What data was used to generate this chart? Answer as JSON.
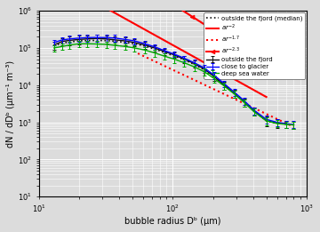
{
  "xlabel": "bubble radius Dᵇ (μm)",
  "ylabel": "dN / dDᵇ (μm⁻¹ m⁻³)",
  "xlim": [
    10,
    1000
  ],
  "ylim": [
    10,
    1000000
  ],
  "bg_color": "#dcdcdc",
  "grid_color": "#ffffff",
  "outside_fjord_x": [
    13,
    15,
    17,
    20,
    23,
    27,
    32,
    37,
    44,
    52,
    62,
    73,
    87,
    103,
    122,
    145,
    172,
    204,
    242,
    288,
    342,
    406,
    500,
    600,
    700,
    800
  ],
  "outside_fjord_y": [
    120000,
    150000,
    160000,
    170000,
    175000,
    180000,
    175000,
    165000,
    155000,
    140000,
    120000,
    100000,
    80000,
    65000,
    50000,
    38000,
    27000,
    17000,
    10000,
    6000,
    3500,
    2000,
    1100,
    950,
    900,
    850
  ],
  "outside_fjord_err_low": [
    30000,
    35000,
    40000,
    45000,
    45000,
    50000,
    45000,
    40000,
    35000,
    30000,
    25000,
    20000,
    15000,
    12000,
    10000,
    8000,
    6000,
    4000,
    2500,
    1500,
    900,
    500,
    300,
    250,
    200,
    200
  ],
  "outside_fjord_err_high": [
    30000,
    35000,
    40000,
    45000,
    45000,
    50000,
    45000,
    40000,
    35000,
    30000,
    25000,
    20000,
    15000,
    12000,
    10000,
    8000,
    6000,
    4000,
    2500,
    1500,
    900,
    500,
    300,
    250,
    200,
    200
  ],
  "outside_fjord_color": "#111111",
  "glacier_x": [
    13,
    15,
    17,
    20,
    23,
    27,
    32,
    37,
    44,
    52,
    62,
    73,
    87,
    103,
    122,
    145,
    172,
    204,
    242,
    288,
    342,
    406,
    500,
    600,
    700,
    800
  ],
  "glacier_y": [
    140000,
    165000,
    175000,
    185000,
    190000,
    192000,
    190000,
    185000,
    170000,
    155000,
    130000,
    108000,
    85000,
    68000,
    53000,
    40000,
    29000,
    18500,
    11000,
    6500,
    3800,
    2100,
    1200,
    1000,
    920,
    880
  ],
  "glacier_err_low": [
    25000,
    30000,
    35000,
    40000,
    40000,
    42000,
    40000,
    38000,
    32000,
    28000,
    22000,
    18000,
    14000,
    11000,
    9000,
    7500,
    5500,
    3800,
    2200,
    1300,
    800,
    450,
    280,
    230,
    200,
    190
  ],
  "glacier_err_high": [
    25000,
    30000,
    35000,
    40000,
    40000,
    42000,
    40000,
    38000,
    32000,
    28000,
    22000,
    18000,
    14000,
    11000,
    9000,
    7500,
    5500,
    3800,
    2200,
    1300,
    800,
    450,
    280,
    230,
    200,
    190
  ],
  "glacier_color": "#0000ff",
  "deep_sea_x": [
    13,
    15,
    17,
    20,
    23,
    27,
    32,
    37,
    44,
    52,
    62,
    73,
    87,
    103,
    122,
    145,
    172,
    204,
    242,
    288,
    342,
    406,
    500,
    600,
    700,
    800
  ],
  "deep_sea_y": [
    100000,
    110000,
    120000,
    130000,
    130000,
    128000,
    125000,
    118000,
    110000,
    100000,
    88000,
    74000,
    60000,
    50000,
    40000,
    31000,
    23000,
    15000,
    9500,
    5800,
    3400,
    1900,
    1100,
    930,
    880,
    850
  ],
  "deep_sea_err_low": [
    20000,
    22000,
    24000,
    26000,
    26000,
    25000,
    25000,
    23000,
    22000,
    20000,
    18000,
    15000,
    12000,
    10000,
    8000,
    6500,
    5000,
    3200,
    2000,
    1200,
    700,
    400,
    250,
    200,
    180,
    180
  ],
  "deep_sea_err_high": [
    20000,
    22000,
    24000,
    26000,
    26000,
    25000,
    25000,
    23000,
    22000,
    20000,
    18000,
    15000,
    12000,
    10000,
    8000,
    6500,
    5000,
    3200,
    2000,
    1200,
    700,
    400,
    250,
    200,
    180,
    180
  ],
  "deep_sea_color": "#00aa00",
  "median_x": [
    13,
    15,
    17,
    20,
    23,
    27,
    32,
    37,
    44,
    52,
    62,
    73,
    87,
    103,
    122,
    145,
    172,
    204,
    242,
    288,
    342,
    406,
    500,
    600,
    700,
    800
  ],
  "median_y": [
    115000,
    135000,
    145000,
    155000,
    158000,
    160000,
    158000,
    152000,
    142000,
    130000,
    112000,
    94000,
    75000,
    61000,
    48000,
    36000,
    26000,
    16500,
    10200,
    6100,
    3600,
    2000,
    1100,
    950,
    900,
    860
  ],
  "median_color": "#111111",
  "power2_x1": 30,
  "power2_x2": 500,
  "power2_a": 1200000000.0,
  "power2_exp": -2.0,
  "power17_x1": 55,
  "power17_x2": 800,
  "power17_a": 65000000.0,
  "power17_exp": -1.7,
  "power23_x1": 30,
  "power23_x2": 500,
  "power23_a": 60000000000.0,
  "power23_exp": -2.3,
  "ref_line_color": "#ff0000"
}
